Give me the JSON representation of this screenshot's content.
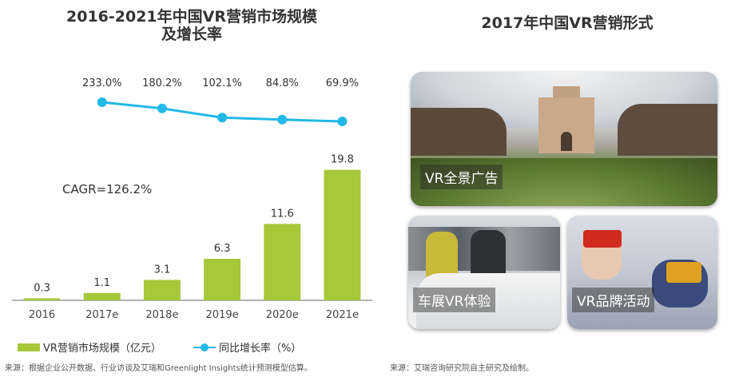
{
  "chart_title": "2016-2021年中国VR营销市场规模\n及增长率",
  "chart_title_lines": [
    "2016-2021年中国VR营销市场规模",
    "及增长率"
  ],
  "photo_title": "2017年中国VR营销形式",
  "cagr_text": "CAGR=126.2%",
  "legend": {
    "bar_label": "VR营销市场规模（亿元）",
    "line_label": "同比增长率（%）"
  },
  "source_left": "来源：根据企业公开数据、行业访谈及艾瑞和Greenlight Insights统计预测模型估算。",
  "source_right": "来源：艾瑞咨询研究院自主研究及绘制。",
  "photos": [
    {
      "caption": "VR全景广告"
    },
    {
      "caption": "车展VR体验"
    },
    {
      "caption": "VR品牌活动"
    }
  ],
  "colors": {
    "bar": "#a6c83a",
    "line": "#22b8e8",
    "axis": "#999999"
  },
  "chart_data": {
    "type": "bar",
    "categories": [
      "2016",
      "2017e",
      "2018e",
      "2019e",
      "2020e",
      "2021e"
    ],
    "series": [
      {
        "name": "VR营销市场规模（亿元）",
        "values": [
          0.3,
          1.1,
          3.1,
          6.3,
          11.6,
          19.8
        ],
        "type": "bar"
      },
      {
        "name": "同比增长率（%）",
        "values": [
          null,
          233.0,
          180.2,
          102.1,
          84.8,
          69.9
        ],
        "type": "line"
      }
    ],
    "bar_labels": [
      "0.3",
      "1.1",
      "3.1",
      "6.3",
      "11.6",
      "19.8"
    ],
    "line_labels": [
      "233.0%",
      "180.2%",
      "102.1%",
      "84.8%",
      "69.9%"
    ],
    "annotation": "CAGR=126.2%",
    "legend_position": "bottom"
  }
}
